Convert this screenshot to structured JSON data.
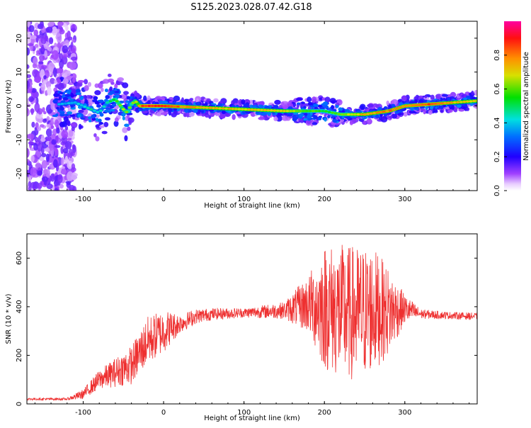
{
  "title": "S125.2023.028.07.42.G18",
  "colorbar": {
    "label": "Normalized spectral amplitude",
    "ticks": [
      "0.0",
      "0.2",
      "0.4",
      "0.6",
      "0.8"
    ],
    "tick_values": [
      0.0,
      0.2,
      0.4,
      0.6,
      0.8
    ],
    "range": [
      0,
      1
    ],
    "colors": [
      "#ffffff",
      "#d9b3ff",
      "#7a00ff",
      "#0000ff",
      "#00ffff",
      "#00ff00",
      "#ffff00",
      "#ff8000",
      "#ff0000",
      "#ff00ff"
    ]
  },
  "chart_data": [
    {
      "type": "heatmap",
      "title": "",
      "xlabel": "Height of straight line (km)",
      "ylabel": "Frequency (Hz)",
      "xlim": [
        -170,
        390
      ],
      "ylim": [
        -25,
        25
      ],
      "xticks": [
        -100,
        0,
        100,
        200,
        300
      ],
      "yticks": [
        -20,
        -10,
        0,
        10,
        20
      ],
      "grid": false,
      "colorbar": "right",
      "ridge": {
        "x": [
          -130,
          -110,
          -90,
          -80,
          -70,
          -60,
          -50,
          -45,
          -40,
          -35,
          -30,
          -20,
          0,
          50,
          100,
          150,
          200,
          220,
          250,
          280,
          300,
          330,
          360,
          390
        ],
        "y": [
          0.5,
          1,
          -1,
          -2,
          1,
          2,
          -1,
          -2,
          0.5,
          1.5,
          0,
          0,
          0,
          -0.5,
          -1,
          -1.5,
          -1.5,
          -2.5,
          -2.5,
          -1.5,
          0,
          0.5,
          1,
          1.5
        ],
        "amplitude": [
          0.35,
          0.4,
          0.45,
          0.4,
          0.45,
          0.6,
          0.65,
          0.6,
          0.6,
          0.65,
          0.8,
          0.9,
          0.85,
          0.75,
          0.7,
          0.7,
          0.55,
          0.6,
          0.75,
          0.8,
          0.8,
          0.85,
          0.75,
          0.7
        ]
      }
    },
    {
      "type": "line",
      "title": "",
      "xlabel": "Height of straight line (km)",
      "ylabel": "SNR (10 * v/v)",
      "xlim": [
        -170,
        390
      ],
      "ylim": [
        0,
        700
      ],
      "xticks": [
        -100,
        0,
        100,
        200,
        300
      ],
      "yticks": [
        0,
        200,
        400,
        600
      ],
      "grid": false,
      "series": [
        {
          "color": "#ee3030",
          "x": [
            -170,
            -120,
            -100,
            -80,
            -60,
            -40,
            -20,
            0,
            20,
            40,
            60,
            100,
            150,
            180,
            200,
            220,
            240,
            260,
            280,
            300,
            320,
            350,
            390
          ],
          "y": [
            20,
            20,
            40,
            100,
            130,
            160,
            260,
            300,
            330,
            360,
            370,
            375,
            385,
            410,
            400,
            380,
            370,
            390,
            380,
            390,
            370,
            365,
            360
          ],
          "spread": [
            5,
            5,
            20,
            40,
            60,
            80,
            100,
            90,
            40,
            30,
            25,
            20,
            35,
            120,
            260,
            280,
            280,
            260,
            180,
            60,
            20,
            15,
            15
          ]
        }
      ]
    }
  ]
}
